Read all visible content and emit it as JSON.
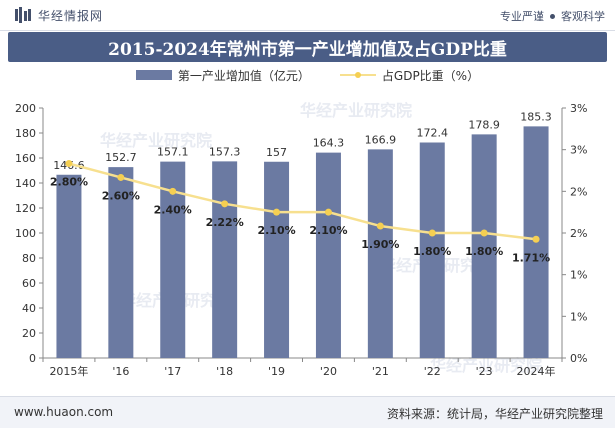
{
  "header": {
    "brand_name": "华经情报网",
    "tags": [
      "专业严谨",
      "客观科学"
    ]
  },
  "title": "2015-2024年常州市第一产业增加值及占GDP比重",
  "legend": {
    "bar_label": "第一产业增加值（亿元）",
    "line_label": "占GDP比重（%）"
  },
  "watermark": "华经产业研究院",
  "footer": {
    "url": "www.huaon.com",
    "source": "资料来源：统计局，华经产业研究院整理"
  },
  "colors": {
    "bar": "#6b7aa2",
    "line": "#f7e08f",
    "marker": "#f5cf52",
    "title_band": "#4a5d86"
  },
  "chart_data": {
    "type": "bar",
    "title": "2015-2024年常州市第一产业增加值及占GDP比重",
    "categories": [
      "2015年",
      "'16",
      "'17",
      "'18",
      "'19",
      "'20",
      "'21",
      "'22",
      "'23",
      "2024年"
    ],
    "series": [
      {
        "name": "第一产业增加值（亿元）",
        "type": "bar",
        "axis": "left",
        "values": [
          146.6,
          152.7,
          157.1,
          157.3,
          157,
          164.3,
          166.9,
          172.4,
          178.9,
          185.3
        ],
        "labels": [
          "146.6",
          "152.7",
          "157.1",
          "157.3",
          "157",
          "164.3",
          "166.9",
          "172.4",
          "178.9",
          "185.3"
        ]
      },
      {
        "name": "占GDP比重（%）",
        "type": "line",
        "axis": "right",
        "values": [
          2.8,
          2.6,
          2.4,
          2.22,
          2.1,
          2.1,
          1.9,
          1.8,
          1.8,
          1.71
        ],
        "labels": [
          "2.80%",
          "2.60%",
          "2.40%",
          "2.22%",
          "2.10%",
          "2.10%",
          "1.90%",
          "1.80%",
          "1.80%",
          "1.71%"
        ]
      }
    ],
    "y_left": {
      "ylim": [
        0,
        200
      ],
      "ticks": [
        "0",
        "20",
        "40",
        "60",
        "80",
        "100",
        "120",
        "140",
        "160",
        "180",
        "200"
      ]
    },
    "y_right": {
      "ylim": [
        0,
        3.6
      ],
      "ticks": [
        "0%",
        "1%",
        "1%",
        "2%",
        "2%",
        "3%",
        "3%"
      ]
    },
    "grid": false,
    "legend_position": "top"
  }
}
